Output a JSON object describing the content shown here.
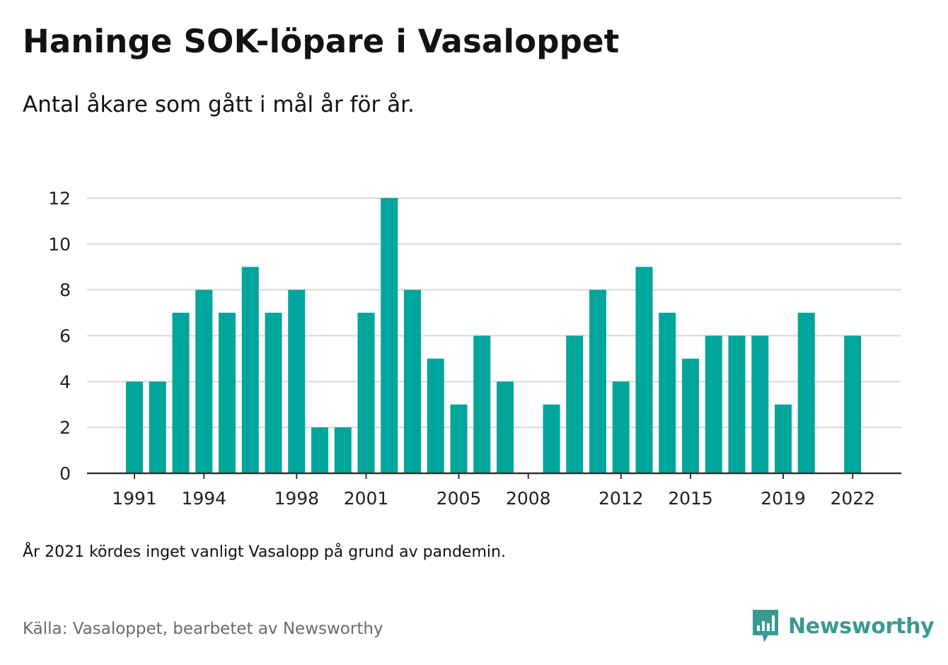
{
  "header": {
    "title": "Haninge SOK-löpare i Vasaloppet",
    "subtitle": "Antal åkare som gått i mål år för år."
  },
  "footer": {
    "note": "År 2021 kördes inget vanligt Vasalopp på grund av pandemin.",
    "source": "Källa: Vasaloppet, bearbetet av Newsworthy",
    "logo_text": "Newsworthy",
    "logo_icon": "newsworthy-logo-icon"
  },
  "colors": {
    "bar": "#00a59b",
    "grid": "#d9d9d9",
    "axis": "#333333",
    "logo": "#3a9a93"
  },
  "chart_data": {
    "type": "bar",
    "categories": [
      "1991",
      "1992",
      "1993",
      "1994",
      "1995",
      "1996",
      "1997",
      "1998",
      "1999",
      "2000",
      "2001",
      "2002",
      "2003",
      "2004",
      "2005",
      "2006",
      "2007",
      "2008",
      "2009",
      "2010",
      "2011",
      "2012",
      "2013",
      "2014",
      "2015",
      "2016",
      "2017",
      "2018",
      "2019",
      "2020",
      "2021",
      "2022"
    ],
    "values": [
      4,
      4,
      7,
      8,
      7,
      9,
      7,
      8,
      2,
      2,
      7,
      12,
      8,
      5,
      3,
      6,
      4,
      null,
      3,
      6,
      8,
      4,
      9,
      7,
      5,
      6,
      6,
      6,
      3,
      7,
      null,
      6
    ],
    "x_tick_labels": [
      "1991",
      "1994",
      "1998",
      "2001",
      "2005",
      "2008",
      "2012",
      "2015",
      "2019",
      "2022"
    ],
    "y_ticks": [
      0,
      2,
      4,
      6,
      8,
      10,
      12
    ],
    "ylim": [
      0,
      12
    ],
    "xlabel": "",
    "ylabel": "",
    "grid": true
  }
}
